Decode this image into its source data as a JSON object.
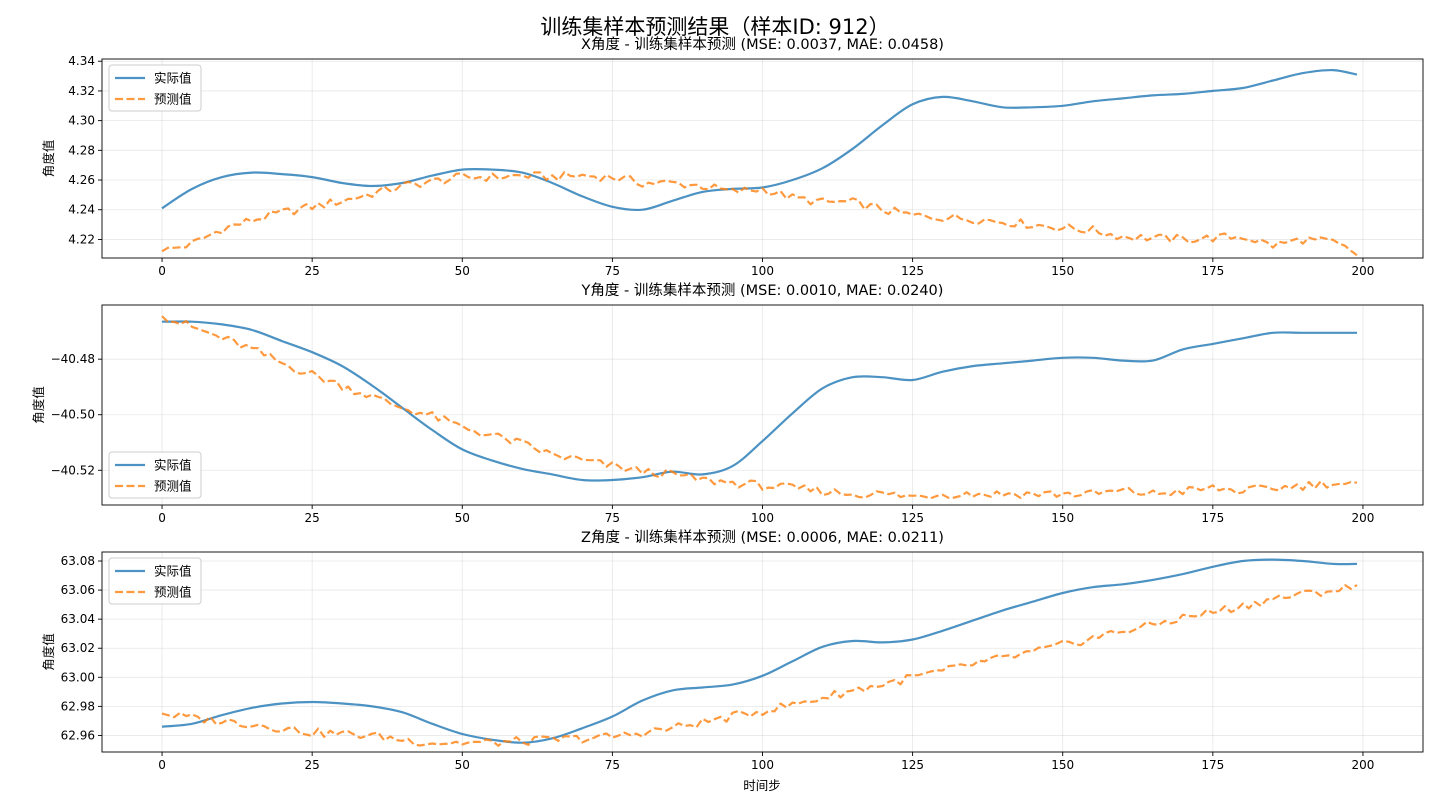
{
  "figure": {
    "title": "训练集样本预测结果（样本ID: 912）",
    "xlabel": "时间步"
  },
  "colors": {
    "actual": "#1f77b4",
    "predicted": "#ff7f0e"
  },
  "chart_data": [
    {
      "type": "line",
      "title": "X角度 - 训练集样本预测 (MSE: 0.0037, MAE: 0.0458)",
      "xlabel": "",
      "ylabel": "角度值",
      "xlim": [
        -10,
        210
      ],
      "ylim": [
        4.2075,
        4.3415
      ],
      "xticks": [
        0,
        25,
        50,
        75,
        100,
        125,
        150,
        175,
        200
      ],
      "yticks": [
        4.22,
        4.24,
        4.26,
        4.28,
        4.3,
        4.32,
        4.34
      ],
      "ytick_labels": [
        "4.22",
        "4.24",
        "4.26",
        "4.28",
        "4.30",
        "4.32",
        "4.34"
      ],
      "grid": true,
      "legend_position": "top-left",
      "series": [
        {
          "name": "实际值",
          "style": "solid",
          "points": [
            [
              0,
              4.241
            ],
            [
              5,
              4.254
            ],
            [
              10,
              4.262
            ],
            [
              15,
              4.265
            ],
            [
              20,
              4.264
            ],
            [
              25,
              4.262
            ],
            [
              30,
              4.258
            ],
            [
              35,
              4.256
            ],
            [
              40,
              4.258
            ],
            [
              45,
              4.263
            ],
            [
              50,
              4.267
            ],
            [
              55,
              4.267
            ],
            [
              60,
              4.265
            ],
            [
              65,
              4.258
            ],
            [
              70,
              4.249
            ],
            [
              75,
              4.242
            ],
            [
              80,
              4.24
            ],
            [
              85,
              4.246
            ],
            [
              90,
              4.252
            ],
            [
              95,
              4.254
            ],
            [
              100,
              4.255
            ],
            [
              105,
              4.26
            ],
            [
              110,
              4.268
            ],
            [
              115,
              4.281
            ],
            [
              120,
              4.297
            ],
            [
              125,
              4.311
            ],
            [
              130,
              4.316
            ],
            [
              135,
              4.313
            ],
            [
              140,
              4.309
            ],
            [
              145,
              4.309
            ],
            [
              150,
              4.31
            ],
            [
              155,
              4.313
            ],
            [
              160,
              4.315
            ],
            [
              165,
              4.317
            ],
            [
              170,
              4.318
            ],
            [
              175,
              4.32
            ],
            [
              180,
              4.322
            ],
            [
              185,
              4.327
            ],
            [
              190,
              4.332
            ],
            [
              195,
              4.334
            ],
            [
              199,
              4.331
            ]
          ]
        },
        {
          "name": "预测值",
          "style": "dashed",
          "points": [
            [
              0,
              4.212
            ],
            [
              5,
              4.217
            ],
            [
              10,
              4.227
            ],
            [
              15,
              4.233
            ],
            [
              20,
              4.238
            ],
            [
              25,
              4.242
            ],
            [
              30,
              4.246
            ],
            [
              35,
              4.251
            ],
            [
              40,
              4.256
            ],
            [
              45,
              4.259
            ],
            [
              50,
              4.262
            ],
            [
              55,
              4.262
            ],
            [
              60,
              4.263
            ],
            [
              65,
              4.262
            ],
            [
              70,
              4.263
            ],
            [
              75,
              4.262
            ],
            [
              80,
              4.258
            ],
            [
              85,
              4.258
            ],
            [
              90,
              4.256
            ],
            [
              95,
              4.252
            ],
            [
              100,
              4.254
            ],
            [
              105,
              4.248
            ],
            [
              110,
              4.245
            ],
            [
              115,
              4.245
            ],
            [
              120,
              4.24
            ],
            [
              125,
              4.236
            ],
            [
              130,
              4.235
            ],
            [
              135,
              4.234
            ],
            [
              140,
              4.232
            ],
            [
              145,
              4.23
            ],
            [
              150,
              4.228
            ],
            [
              155,
              4.226
            ],
            [
              160,
              4.222
            ],
            [
              165,
              4.221
            ],
            [
              170,
              4.22
            ],
            [
              175,
              4.221
            ],
            [
              180,
              4.222
            ],
            [
              185,
              4.216
            ],
            [
              190,
              4.22
            ],
            [
              195,
              4.218
            ],
            [
              199,
              4.21
            ]
          ]
        }
      ]
    },
    {
      "type": "line",
      "title": "Y角度 - 训练集样本预测 (MSE: 0.0010, MAE: 0.0240)",
      "xlabel": "",
      "ylabel": "角度值",
      "xlim": [
        -10,
        210
      ],
      "ylim": [
        -40.5325,
        -40.4605
      ],
      "xticks": [
        0,
        25,
        50,
        75,
        100,
        125,
        150,
        175,
        200
      ],
      "yticks": [
        -40.52,
        -40.5,
        -40.48
      ],
      "ytick_labels": [
        "−40.52",
        "−40.50",
        "−40.48"
      ],
      "grid": true,
      "legend_position": "bottom-left",
      "series": [
        {
          "name": "实际值",
          "style": "solid",
          "points": [
            [
              0,
              -40.4665
            ],
            [
              5,
              -40.4665
            ],
            [
              10,
              -40.4675
            ],
            [
              15,
              -40.4695
            ],
            [
              20,
              -40.4735
            ],
            [
              25,
              -40.4775
            ],
            [
              30,
              -40.4825
            ],
            [
              35,
              -40.4895
            ],
            [
              40,
              -40.4975
            ],
            [
              45,
              -40.5055
            ],
            [
              50,
              -40.5125
            ],
            [
              55,
              -40.5165
            ],
            [
              60,
              -40.5195
            ],
            [
              65,
              -40.5215
            ],
            [
              70,
              -40.5235
            ],
            [
              75,
              -40.5235
            ],
            [
              80,
              -40.5225
            ],
            [
              85,
              -40.5205
            ],
            [
              90,
              -40.5215
            ],
            [
              95,
              -40.5185
            ],
            [
              100,
              -40.5095
            ],
            [
              105,
              -40.4995
            ],
            [
              110,
              -40.4905
            ],
            [
              115,
              -40.4865
            ],
            [
              120,
              -40.4865
            ],
            [
              125,
              -40.4875
            ],
            [
              130,
              -40.4845
            ],
            [
              135,
              -40.4825
            ],
            [
              140,
              -40.4815
            ],
            [
              145,
              -40.4805
            ],
            [
              150,
              -40.4795
            ],
            [
              155,
              -40.4795
            ],
            [
              160,
              -40.4805
            ],
            [
              165,
              -40.4805
            ],
            [
              170,
              -40.4765
            ],
            [
              175,
              -40.4745
            ],
            [
              180,
              -40.4725
            ],
            [
              185,
              -40.4705
            ],
            [
              190,
              -40.4705
            ],
            [
              195,
              -40.4705
            ],
            [
              199,
              -40.4705
            ]
          ]
        },
        {
          "name": "预测值",
          "style": "dashed",
          "points": [
            [
              0,
              -40.4645
            ],
            [
              5,
              -40.4685
            ],
            [
              10,
              -40.4725
            ],
            [
              15,
              -40.4765
            ],
            [
              20,
              -40.4815
            ],
            [
              25,
              -40.4855
            ],
            [
              30,
              -40.4895
            ],
            [
              35,
              -40.4935
            ],
            [
              40,
              -40.4975
            ],
            [
              45,
              -40.5005
            ],
            [
              50,
              -40.5045
            ],
            [
              55,
              -40.5075
            ],
            [
              60,
              -40.5105
            ],
            [
              65,
              -40.5145
            ],
            [
              70,
              -40.5165
            ],
            [
              75,
              -40.5185
            ],
            [
              80,
              -40.5205
            ],
            [
              85,
              -40.5215
            ],
            [
              90,
              -40.5235
            ],
            [
              95,
              -40.5245
            ],
            [
              100,
              -40.5255
            ],
            [
              105,
              -40.5265
            ],
            [
              110,
              -40.5275
            ],
            [
              115,
              -40.5285
            ],
            [
              120,
              -40.5285
            ],
            [
              125,
              -40.5295
            ],
            [
              130,
              -40.5285
            ],
            [
              135,
              -40.5285
            ],
            [
              140,
              -40.5285
            ],
            [
              145,
              -40.5285
            ],
            [
              150,
              -40.5285
            ],
            [
              155,
              -40.5285
            ],
            [
              160,
              -40.5275
            ],
            [
              165,
              -40.5285
            ],
            [
              170,
              -40.5275
            ],
            [
              175,
              -40.5265
            ],
            [
              180,
              -40.5275
            ],
            [
              185,
              -40.5265
            ],
            [
              190,
              -40.5255
            ],
            [
              195,
              -40.5245
            ],
            [
              199,
              -40.5255
            ]
          ]
        }
      ]
    },
    {
      "type": "line",
      "title": "Z角度 - 训练集样本预测 (MSE: 0.0006, MAE: 0.0211)",
      "xlabel": "时间步",
      "ylabel": "角度值",
      "xlim": [
        -10,
        210
      ],
      "ylim": [
        62.9486,
        63.0862
      ],
      "xticks": [
        0,
        25,
        50,
        75,
        100,
        125,
        150,
        175,
        200
      ],
      "yticks": [
        62.96,
        62.98,
        63.0,
        63.02,
        63.04,
        63.06,
        63.08
      ],
      "ytick_labels": [
        "62.96",
        "62.98",
        "63.00",
        "63.02",
        "63.04",
        "63.06",
        "63.08"
      ],
      "grid": true,
      "legend_position": "top-left",
      "series": [
        {
          "name": "实际值",
          "style": "solid",
          "points": [
            [
              0,
              62.966
            ],
            [
              5,
              62.968
            ],
            [
              10,
              62.974
            ],
            [
              15,
              62.979
            ],
            [
              20,
              62.982
            ],
            [
              25,
              62.983
            ],
            [
              30,
              62.982
            ],
            [
              35,
              62.98
            ],
            [
              40,
              62.976
            ],
            [
              45,
              62.968
            ],
            [
              50,
              62.961
            ],
            [
              55,
              62.957
            ],
            [
              60,
              62.955
            ],
            [
              65,
              62.958
            ],
            [
              70,
              62.965
            ],
            [
              75,
              62.973
            ],
            [
              80,
              62.984
            ],
            [
              85,
              62.991
            ],
            [
              90,
              62.993
            ],
            [
              95,
              62.995
            ],
            [
              100,
              63.001
            ],
            [
              105,
              63.011
            ],
            [
              110,
              63.021
            ],
            [
              115,
              63.025
            ],
            [
              120,
              63.024
            ],
            [
              125,
              63.026
            ],
            [
              130,
              63.032
            ],
            [
              135,
              63.039
            ],
            [
              140,
              63.046
            ],
            [
              145,
              63.052
            ],
            [
              150,
              63.058
            ],
            [
              155,
              63.062
            ],
            [
              160,
              63.064
            ],
            [
              165,
              63.067
            ],
            [
              170,
              63.071
            ],
            [
              175,
              63.076
            ],
            [
              180,
              63.08
            ],
            [
              185,
              63.081
            ],
            [
              190,
              63.08
            ],
            [
              195,
              63.078
            ],
            [
              199,
              63.078
            ]
          ]
        },
        {
          "name": "预测值",
          "style": "dashed",
          "points": [
            [
              0,
              62.975
            ],
            [
              5,
              62.972
            ],
            [
              10,
              62.97
            ],
            [
              15,
              62.968
            ],
            [
              20,
              62.965
            ],
            [
              25,
              62.962
            ],
            [
              30,
              62.961
            ],
            [
              35,
              62.96
            ],
            [
              40,
              62.957
            ],
            [
              45,
              62.955
            ],
            [
              50,
              62.955
            ],
            [
              55,
              62.955
            ],
            [
              60,
              62.956
            ],
            [
              65,
              62.957
            ],
            [
              70,
              62.958
            ],
            [
              75,
              62.959
            ],
            [
              80,
              62.962
            ],
            [
              85,
              62.965
            ],
            [
              90,
              62.969
            ],
            [
              95,
              62.973
            ],
            [
              100,
              62.977
            ],
            [
              105,
              62.981
            ],
            [
              110,
              62.986
            ],
            [
              115,
              62.991
            ],
            [
              120,
              62.995
            ],
            [
              125,
              63.0
            ],
            [
              130,
              63.004
            ],
            [
              135,
              63.009
            ],
            [
              140,
              63.013
            ],
            [
              145,
              63.017
            ],
            [
              150,
              63.022
            ],
            [
              155,
              63.027
            ],
            [
              160,
              63.032
            ],
            [
              165,
              63.036
            ],
            [
              170,
              63.041
            ],
            [
              175,
              63.045
            ],
            [
              180,
              63.049
            ],
            [
              185,
              63.054
            ],
            [
              190,
              63.057
            ],
            [
              195,
              63.06
            ],
            [
              199,
              63.062
            ]
          ]
        }
      ]
    }
  ]
}
